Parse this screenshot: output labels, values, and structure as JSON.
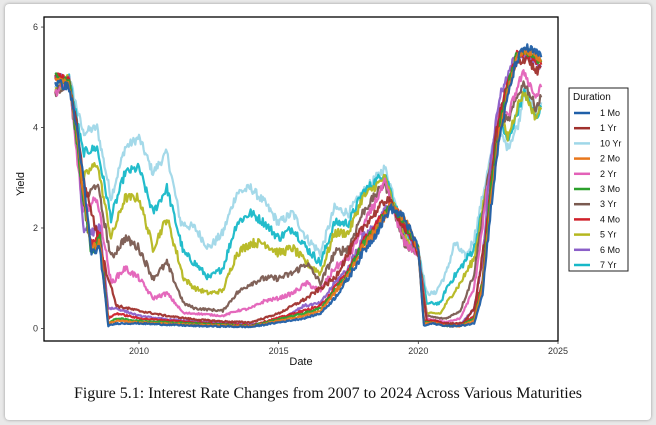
{
  "caption": "Figure 5.1: Interest Rate Changes from 2007 to 2024 Across Various Maturities",
  "chart_data": {
    "type": "line",
    "title": "",
    "xlabel": "Date",
    "ylabel": "Yield",
    "xlim": [
      2006.6,
      2025.0
    ],
    "ylim": [
      -0.25,
      6.2
    ],
    "x_ticks": [
      2010,
      2015,
      2020,
      2025
    ],
    "y_ticks": [
      0,
      2,
      4,
      6
    ],
    "grid": false,
    "legend": {
      "title": "Duration",
      "position": "right"
    },
    "series": [
      {
        "name": "1 Mo",
        "color": "#1f5fa8",
        "x": [
          2007.0,
          2007.5,
          2007.8,
          2008.0,
          2008.3,
          2008.6,
          2008.9,
          2009.2,
          2010.0,
          2012.0,
          2014.0,
          2015.9,
          2016.5,
          2017.0,
          2017.5,
          2018.0,
          2018.5,
          2019.0,
          2019.5,
          2020.0,
          2020.2,
          2020.5,
          2021.0,
          2021.5,
          2022.0,
          2022.3,
          2022.6,
          2022.9,
          2023.2,
          2023.5,
          2023.8,
          2024.2,
          2024.4
        ],
        "y": [
          4.9,
          4.8,
          3.9,
          3.0,
          1.5,
          1.6,
          0.05,
          0.1,
          0.1,
          0.05,
          0.03,
          0.2,
          0.3,
          0.6,
          1.0,
          1.5,
          1.9,
          2.4,
          2.2,
          1.6,
          0.05,
          0.1,
          0.05,
          0.05,
          0.1,
          0.7,
          2.4,
          3.8,
          4.6,
          5.3,
          5.6,
          5.5,
          5.4
        ]
      },
      {
        "name": "1 Yr",
        "color": "#a0302c",
        "x": [
          2007.0,
          2007.5,
          2007.8,
          2008.0,
          2008.4,
          2008.8,
          2009.2,
          2010.0,
          2011.0,
          2012.0,
          2013.0,
          2014.0,
          2015.0,
          2016.0,
          2017.0,
          2018.0,
          2018.9,
          2019.5,
          2020.0,
          2020.3,
          2020.6,
          2021.0,
          2021.6,
          2022.0,
          2022.4,
          2022.8,
          2023.2,
          2023.6,
          2023.9,
          2024.2,
          2024.4
        ],
        "y": [
          5.0,
          4.9,
          4.0,
          3.0,
          2.1,
          1.2,
          0.45,
          0.35,
          0.25,
          0.18,
          0.14,
          0.12,
          0.3,
          0.6,
          1.0,
          2.0,
          2.6,
          2.0,
          1.5,
          0.15,
          0.15,
          0.1,
          0.1,
          0.4,
          1.8,
          4.0,
          4.9,
          5.3,
          5.4,
          5.1,
          5.2
        ]
      },
      {
        "name": "10 Yr",
        "color": "#9fd7e8",
        "x": [
          2007.0,
          2007.5,
          2008.0,
          2008.5,
          2009.0,
          2009.5,
          2010.0,
          2010.5,
          2011.0,
          2011.5,
          2012.0,
          2012.5,
          2013.0,
          2013.5,
          2014.0,
          2014.5,
          2015.0,
          2015.5,
          2016.0,
          2016.5,
          2017.0,
          2017.5,
          2018.0,
          2018.8,
          2019.5,
          2020.0,
          2020.3,
          2020.6,
          2021.0,
          2021.3,
          2021.7,
          2022.0,
          2022.4,
          2022.8,
          2023.2,
          2023.6,
          2023.8,
          2024.2,
          2024.4
        ],
        "y": [
          4.8,
          5.0,
          3.9,
          4.0,
          2.6,
          3.6,
          3.8,
          3.1,
          3.5,
          2.1,
          2.0,
          1.6,
          1.9,
          2.7,
          2.8,
          2.5,
          2.1,
          2.3,
          1.8,
          1.5,
          2.4,
          2.3,
          2.7,
          3.2,
          2.0,
          1.6,
          0.7,
          0.7,
          1.1,
          1.7,
          1.4,
          1.8,
          2.9,
          4.0,
          3.6,
          4.1,
          4.8,
          4.3,
          4.5
        ]
      },
      {
        "name": "2 Mo",
        "color": "#e8771c",
        "x": [
          2007.0,
          2007.5,
          2007.8,
          2008.0,
          2008.3,
          2008.6,
          2008.9,
          2009.2,
          2010.0,
          2012.0,
          2014.0,
          2015.9,
          2016.5,
          2017.0,
          2017.5,
          2018.0,
          2018.5,
          2019.0,
          2019.5,
          2020.0,
          2020.2,
          2020.5,
          2021.0,
          2021.5,
          2022.0,
          2022.3,
          2022.6,
          2022.9,
          2023.2,
          2023.5,
          2023.8,
          2024.2,
          2024.4
        ],
        "y": [
          4.95,
          4.85,
          3.8,
          2.7,
          1.6,
          1.7,
          0.1,
          0.15,
          0.12,
          0.07,
          0.04,
          0.25,
          0.35,
          0.7,
          1.05,
          1.6,
          1.95,
          2.45,
          2.2,
          1.6,
          0.1,
          0.12,
          0.05,
          0.05,
          0.15,
          0.8,
          2.6,
          3.9,
          4.7,
          5.35,
          5.55,
          5.45,
          5.35
        ]
      },
      {
        "name": "2 Yr",
        "color": "#e361b8",
        "x": [
          2007.0,
          2007.5,
          2008.0,
          2008.5,
          2009.0,
          2009.5,
          2010.0,
          2010.5,
          2011.0,
          2011.6,
          2012.0,
          2013.0,
          2013.5,
          2014.0,
          2014.5,
          2015.0,
          2015.5,
          2016.0,
          2016.5,
          2017.0,
          2017.5,
          2018.0,
          2018.8,
          2019.5,
          2020.0,
          2020.3,
          2020.8,
          2021.0,
          2021.5,
          2022.0,
          2022.5,
          2022.9,
          2023.2,
          2023.6,
          2023.8,
          2024.2,
          2024.4
        ],
        "y": [
          4.7,
          4.9,
          2.3,
          2.6,
          0.9,
          1.2,
          1.0,
          0.6,
          0.7,
          0.3,
          0.3,
          0.25,
          0.35,
          0.4,
          0.55,
          0.6,
          0.7,
          0.9,
          0.75,
          1.2,
          1.4,
          2.0,
          2.9,
          1.7,
          1.5,
          0.2,
          0.15,
          0.12,
          0.2,
          0.8,
          2.9,
          4.4,
          4.2,
          4.9,
          5.1,
          4.6,
          4.8
        ]
      },
      {
        "name": "3 Mo",
        "color": "#2ca02c",
        "x": [
          2007.0,
          2007.5,
          2007.8,
          2008.0,
          2008.3,
          2008.6,
          2008.9,
          2009.2,
          2010.0,
          2012.0,
          2014.0,
          2015.9,
          2016.5,
          2017.0,
          2017.5,
          2018.0,
          2018.5,
          2019.0,
          2019.5,
          2020.0,
          2020.2,
          2020.5,
          2021.0,
          2021.5,
          2022.0,
          2022.3,
          2022.6,
          2022.9,
          2023.2,
          2023.5,
          2023.8,
          2024.2,
          2024.4
        ],
        "y": [
          5.0,
          4.9,
          3.6,
          2.6,
          1.5,
          1.8,
          0.1,
          0.2,
          0.15,
          0.1,
          0.05,
          0.3,
          0.4,
          0.75,
          1.1,
          1.65,
          2.0,
          2.45,
          2.15,
          1.55,
          0.12,
          0.12,
          0.05,
          0.05,
          0.2,
          0.9,
          2.8,
          4.0,
          4.8,
          5.4,
          5.55,
          5.4,
          5.3
        ]
      },
      {
        "name": "3 Yr",
        "color": "#7a5a50",
        "x": [
          2007.0,
          2007.5,
          2008.0,
          2008.5,
          2009.0,
          2009.5,
          2010.0,
          2010.5,
          2011.0,
          2011.6,
          2012.0,
          2013.0,
          2013.5,
          2014.0,
          2014.5,
          2015.0,
          2015.5,
          2016.0,
          2016.5,
          2017.0,
          2017.5,
          2018.0,
          2018.8,
          2019.5,
          2020.0,
          2020.3,
          2020.8,
          2021.0,
          2021.5,
          2022.0,
          2022.5,
          2022.9,
          2023.2,
          2023.6,
          2023.8,
          2024.2,
          2024.4
        ],
        "y": [
          4.7,
          4.9,
          2.5,
          2.9,
          1.4,
          1.8,
          1.6,
          1.0,
          1.3,
          0.5,
          0.4,
          0.35,
          0.7,
          0.9,
          1.0,
          1.0,
          1.1,
          1.3,
          0.9,
          1.5,
          1.6,
          2.3,
          2.9,
          1.7,
          1.5,
          0.25,
          0.2,
          0.2,
          0.35,
          1.1,
          3.0,
          4.4,
          4.1,
          4.7,
          4.9,
          4.4,
          4.6
        ]
      },
      {
        "name": "4 Mo",
        "color": "#d0202a",
        "x": [
          2007.0,
          2007.5,
          2007.8,
          2008.0,
          2008.3,
          2008.6,
          2008.9,
          2009.2,
          2010.0,
          2012.0,
          2014.0,
          2015.9,
          2016.5,
          2017.0,
          2017.5,
          2018.0,
          2018.5,
          2019.0,
          2019.5,
          2020.0,
          2020.2,
          2020.5,
          2021.0,
          2021.5,
          2022.0,
          2022.3,
          2022.6,
          2022.9,
          2023.2,
          2023.5,
          2023.8,
          2024.2,
          2024.4
        ],
        "y": [
          5.0,
          4.95,
          3.7,
          2.6,
          1.7,
          1.9,
          0.2,
          0.3,
          0.2,
          0.12,
          0.06,
          0.35,
          0.45,
          0.8,
          1.15,
          1.7,
          2.05,
          2.5,
          2.1,
          1.55,
          0.15,
          0.15,
          0.06,
          0.06,
          0.25,
          1.0,
          2.9,
          4.1,
          4.85,
          5.45,
          5.5,
          5.35,
          5.25
        ]
      },
      {
        "name": "5 Yr",
        "color": "#b5b71f",
        "x": [
          2007.0,
          2007.5,
          2008.0,
          2008.5,
          2009.0,
          2009.5,
          2010.0,
          2010.5,
          2011.0,
          2011.6,
          2012.0,
          2012.5,
          2013.0,
          2013.5,
          2014.0,
          2014.5,
          2015.0,
          2015.5,
          2016.0,
          2016.5,
          2017.0,
          2017.5,
          2018.0,
          2018.8,
          2019.5,
          2020.0,
          2020.3,
          2020.8,
          2021.0,
          2021.5,
          2022.0,
          2022.5,
          2022.9,
          2023.2,
          2023.6,
          2023.8,
          2024.2,
          2024.4
        ],
        "y": [
          4.7,
          5.0,
          3.0,
          3.3,
          1.8,
          2.6,
          2.6,
          1.6,
          2.2,
          1.0,
          0.8,
          0.7,
          0.75,
          1.5,
          1.7,
          1.7,
          1.5,
          1.6,
          1.3,
          1.1,
          1.9,
          1.9,
          2.6,
          3.0,
          1.8,
          1.5,
          0.3,
          0.3,
          0.5,
          0.9,
          1.4,
          3.0,
          4.3,
          3.8,
          4.5,
          4.7,
          4.2,
          4.4
        ]
      },
      {
        "name": "6 Mo",
        "color": "#8b5fc8",
        "x": [
          2007.0,
          2007.5,
          2007.8,
          2008.0,
          2008.3,
          2008.6,
          2008.9,
          2009.2,
          2010.0,
          2011.0,
          2012.0,
          2014.0,
          2015.0,
          2015.9,
          2016.5,
          2017.0,
          2017.5,
          2018.0,
          2018.5,
          2019.0,
          2019.5,
          2020.0,
          2020.2,
          2020.5,
          2021.0,
          2021.5,
          2022.0,
          2022.3,
          2022.6,
          2022.9,
          2023.2,
          2023.5,
          2023.8,
          2024.2,
          2024.4
        ],
        "y": [
          5.0,
          4.95,
          3.8,
          2.0,
          1.9,
          2.0,
          0.4,
          0.4,
          0.25,
          0.18,
          0.14,
          0.08,
          0.15,
          0.45,
          0.5,
          0.9,
          1.2,
          1.8,
          2.1,
          2.5,
          2.0,
          1.55,
          0.15,
          0.15,
          0.08,
          0.07,
          0.4,
          1.4,
          3.4,
          4.6,
          5.0,
          5.5,
          5.4,
          5.3,
          5.2
        ]
      },
      {
        "name": "7 Yr",
        "color": "#17b8c8",
        "x": [
          2007.0,
          2007.5,
          2008.0,
          2008.5,
          2009.0,
          2009.5,
          2010.0,
          2010.5,
          2011.0,
          2011.6,
          2012.0,
          2012.5,
          2013.0,
          2013.5,
          2014.0,
          2014.5,
          2015.0,
          2015.5,
          2016.0,
          2016.5,
          2017.0,
          2017.5,
          2018.0,
          2018.8,
          2019.5,
          2020.0,
          2020.3,
          2020.8,
          2021.0,
          2021.5,
          2022.0,
          2022.5,
          2022.9,
          2023.2,
          2023.6,
          2023.8,
          2024.2,
          2024.4
        ],
        "y": [
          4.75,
          5.0,
          3.5,
          3.6,
          2.2,
          3.1,
          3.2,
          2.3,
          2.8,
          1.5,
          1.3,
          1.0,
          1.2,
          2.1,
          2.3,
          2.1,
          1.8,
          2.0,
          1.6,
          1.3,
          2.1,
          2.1,
          2.7,
          3.1,
          1.9,
          1.5,
          0.5,
          0.5,
          0.8,
          1.2,
          1.6,
          2.9,
          4.2,
          3.7,
          4.4,
          4.7,
          4.2,
          4.4
        ]
      }
    ]
  }
}
